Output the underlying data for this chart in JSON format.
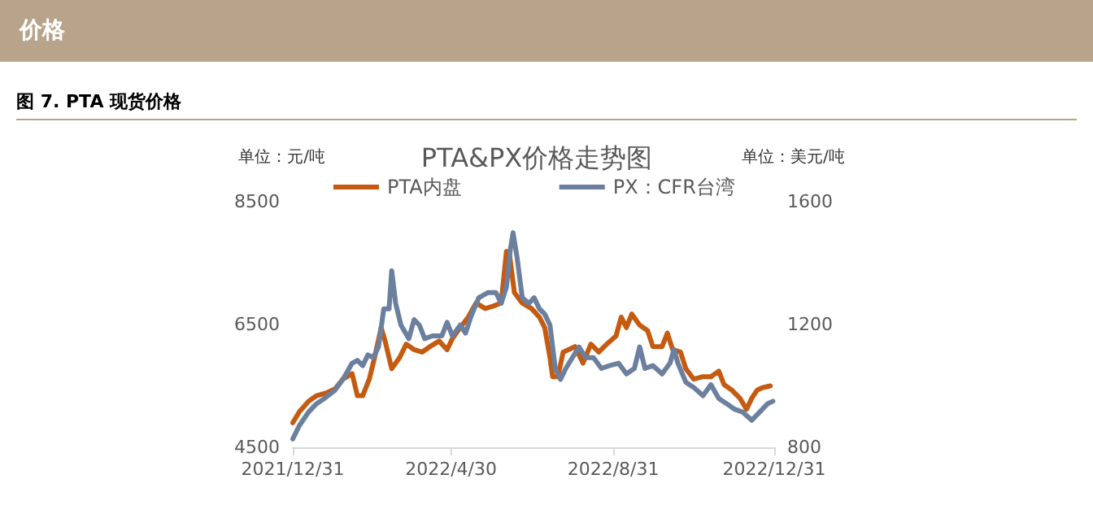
{
  "chart_data": {
    "type": "line",
    "title": "PTA&PX价格走势图",
    "subtitle": "图 7. PTA 现货价格",
    "annotations": [
      "价格"
    ],
    "ylabel": "单位：元/吨",
    "y2label": "单位：美元/吨",
    "xlim": [
      "2021-12-31",
      "2022-12-31"
    ],
    "xticks": [
      {
        "value": "2021-12-31",
        "label": "2021/12/31"
      },
      {
        "value": "2022-04-30",
        "label": "2022/4/30"
      },
      {
        "value": "2022-08-31",
        "label": "2022/8/31"
      },
      {
        "value": "2022-12-31",
        "label": "2022/12/31"
      }
    ],
    "ylim": [
      4500,
      8500
    ],
    "yticks": [
      4500,
      6500,
      8500
    ],
    "y2lim": [
      800,
      1600
    ],
    "y2ticks": [
      800,
      1200,
      1600
    ],
    "legend": "top",
    "grid": false,
    "marker": "none",
    "line_style": "solid",
    "series": [
      {
        "name": "PTA内盘",
        "color": "#c55a11",
        "x": [
          "2021-12-31",
          "2022-01-05",
          "2022-01-12",
          "2022-01-18",
          "2022-01-26",
          "2022-02-01",
          "2022-02-07",
          "2022-02-14",
          "2022-02-18",
          "2022-02-22",
          "2022-02-27",
          "2022-03-03",
          "2022-03-08",
          "2022-03-11",
          "2022-03-16",
          "2022-03-22",
          "2022-03-27",
          "2022-04-02",
          "2022-04-08",
          "2022-04-14",
          "2022-04-21",
          "2022-04-27",
          "2022-05-01",
          "2022-05-07",
          "2022-05-13",
          "2022-05-19",
          "2022-05-26",
          "2022-06-01",
          "2022-06-07",
          "2022-06-11",
          "2022-06-13",
          "2022-06-17",
          "2022-06-23",
          "2022-06-30",
          "2022-07-06",
          "2022-07-10",
          "2022-07-14",
          "2022-07-16",
          "2022-07-20",
          "2022-07-24",
          "2022-08-02",
          "2022-08-08",
          "2022-08-14",
          "2022-08-20",
          "2022-08-26",
          "2022-09-02",
          "2022-09-06",
          "2022-09-10",
          "2022-09-14",
          "2022-09-20",
          "2022-09-26",
          "2022-09-30",
          "2022-10-07",
          "2022-10-11",
          "2022-10-15",
          "2022-10-21",
          "2022-10-25",
          "2022-10-31",
          "2022-11-07",
          "2022-11-13",
          "2022-11-19",
          "2022-11-23",
          "2022-11-29",
          "2022-12-05",
          "2022-12-10",
          "2022-12-14",
          "2022-12-18",
          "2022-12-22",
          "2022-12-28"
        ],
        "values": [
          4900,
          5080,
          5250,
          5340,
          5390,
          5450,
          5610,
          5700,
          5340,
          5340,
          5610,
          5960,
          6450,
          6230,
          5780,
          5960,
          6180,
          6090,
          6050,
          6140,
          6230,
          6090,
          6270,
          6450,
          6620,
          6850,
          6760,
          6800,
          6850,
          7690,
          7690,
          7020,
          6850,
          6760,
          6620,
          6450,
          5960,
          5650,
          5650,
          6050,
          6140,
          5870,
          6180,
          6050,
          6180,
          6310,
          6620,
          6450,
          6670,
          6490,
          6400,
          6140,
          6140,
          6360,
          6090,
          6050,
          5780,
          5610,
          5650,
          5650,
          5740,
          5520,
          5430,
          5300,
          5120,
          5300,
          5430,
          5470,
          5500
        ]
      },
      {
        "name": "PX：CFR台湾",
        "color": "#6b7f9e",
        "axis": "y2",
        "x": [
          "2021-12-31",
          "2022-01-05",
          "2022-01-12",
          "2022-01-18",
          "2022-01-24",
          "2022-02-01",
          "2022-02-07",
          "2022-02-14",
          "2022-02-18",
          "2022-02-22",
          "2022-02-26",
          "2022-03-02",
          "2022-03-06",
          "2022-03-10",
          "2022-03-14",
          "2022-03-16",
          "2022-03-19",
          "2022-03-23",
          "2022-03-29",
          "2022-04-02",
          "2022-04-06",
          "2022-04-10",
          "2022-04-16",
          "2022-04-23",
          "2022-04-27",
          "2022-05-01",
          "2022-05-07",
          "2022-05-11",
          "2022-05-15",
          "2022-05-21",
          "2022-05-28",
          "2022-06-03",
          "2022-06-07",
          "2022-06-11",
          "2022-06-14",
          "2022-06-16",
          "2022-06-19",
          "2022-06-23",
          "2022-06-28",
          "2022-07-02",
          "2022-07-06",
          "2022-07-10",
          "2022-07-14",
          "2022-07-18",
          "2022-07-22",
          "2022-07-26",
          "2022-07-31",
          "2022-08-05",
          "2022-08-10",
          "2022-08-16",
          "2022-08-22",
          "2022-08-28",
          "2022-09-04",
          "2022-09-10",
          "2022-09-16",
          "2022-09-20",
          "2022-09-24",
          "2022-09-30",
          "2022-10-07",
          "2022-10-13",
          "2022-10-16",
          "2022-10-19",
          "2022-10-25",
          "2022-10-31",
          "2022-11-07",
          "2022-11-13",
          "2022-11-19",
          "2022-11-25",
          "2022-12-01",
          "2022-12-07",
          "2022-12-14",
          "2022-12-20",
          "2022-12-26",
          "2022-12-30"
        ],
        "values": [
          827,
          871,
          915,
          942,
          959,
          986,
          1021,
          1074,
          1083,
          1066,
          1101,
          1092,
          1127,
          1251,
          1251,
          1375,
          1269,
          1198,
          1154,
          1216,
          1198,
          1154,
          1163,
          1163,
          1207,
          1163,
          1198,
          1172,
          1225,
          1287,
          1304,
          1304,
          1269,
          1322,
          1446,
          1499,
          1420,
          1287,
          1269,
          1287,
          1251,
          1234,
          1198,
          1057,
          1021,
          1057,
          1092,
          1127,
          1092,
          1092,
          1057,
          1066,
          1074,
          1039,
          1057,
          1127,
          1057,
          1066,
          1039,
          1074,
          1119,
          1074,
          1012,
          995,
          968,
          1004,
          959,
          942,
          924,
          915,
          888,
          915,
          942,
          950
        ]
      }
    ]
  }
}
